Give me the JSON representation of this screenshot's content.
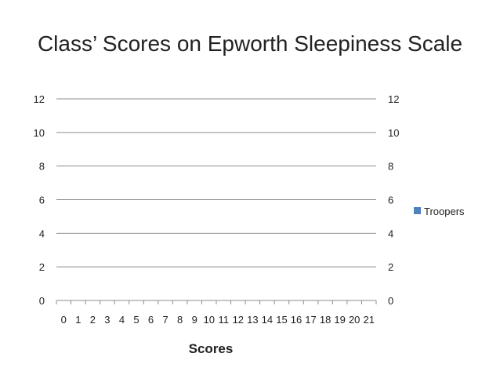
{
  "chart_data": {
    "type": "bar",
    "title": "Class’ Scores on Epworth Sleepiness Scale",
    "xlabel": "Scores",
    "ylabel": "",
    "categories": [
      "0",
      "1",
      "2",
      "3",
      "4",
      "5",
      "6",
      "7",
      "8",
      "9",
      "10",
      "11",
      "12",
      "13",
      "14",
      "15",
      "16",
      "17",
      "18",
      "19",
      "20",
      "21"
    ],
    "series": [
      {
        "name": "Troopers",
        "color": "#4F81BD",
        "values": [
          0,
          0,
          0,
          0,
          0,
          0,
          0,
          0,
          0,
          0,
          0,
          0,
          0,
          0,
          0,
          0,
          0,
          0,
          0,
          0,
          0,
          0
        ]
      }
    ],
    "ylim": [
      0,
      12
    ],
    "yticks": [
      "0",
      "2",
      "4",
      "6",
      "8",
      "10",
      "12"
    ],
    "y2ticks": [
      "0",
      "2",
      "4",
      "6",
      "8",
      "10",
      "12"
    ],
    "grid": true,
    "legend_position": "right"
  }
}
